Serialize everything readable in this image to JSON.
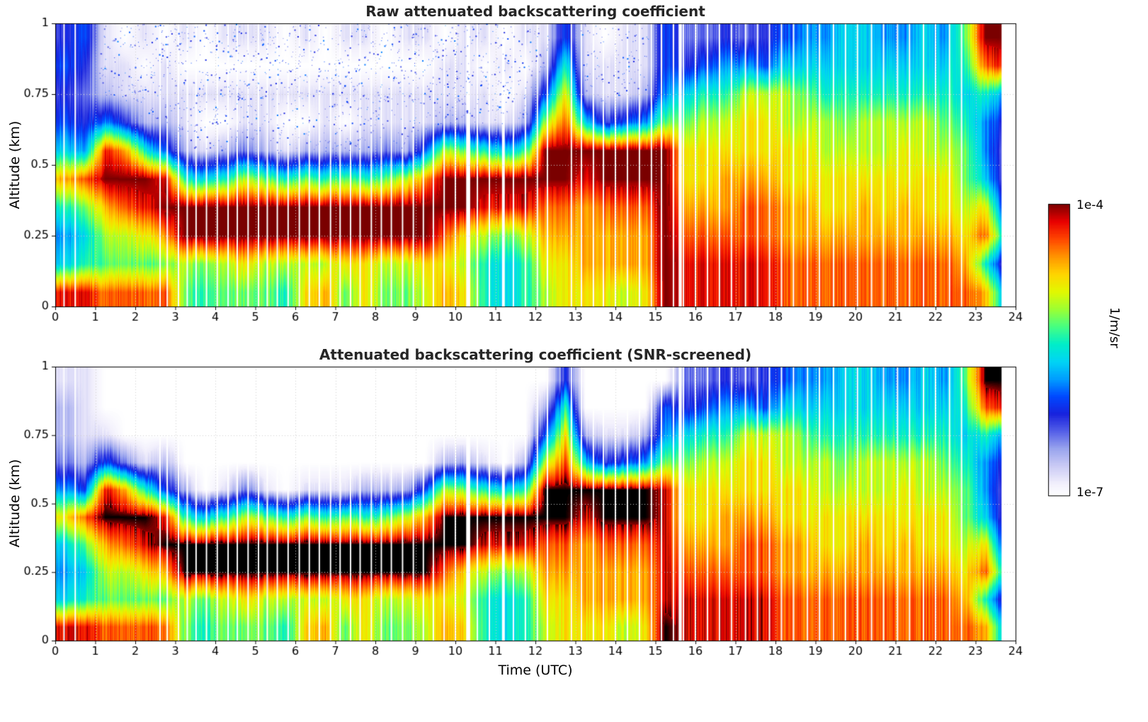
{
  "chart_data": {
    "type": "heatmap",
    "xlabel": "Time (UTC)",
    "ylabel": "Altitude (km)",
    "xlim": [
      0,
      24
    ],
    "ylim": [
      0,
      1
    ],
    "xticks": [
      0,
      1,
      2,
      3,
      4,
      5,
      6,
      7,
      8,
      9,
      10,
      11,
      12,
      13,
      14,
      15,
      16,
      17,
      18,
      19,
      20,
      21,
      22,
      23,
      24
    ],
    "yticks": [
      0,
      0.25,
      0.5,
      0.75,
      1
    ],
    "colorbar": {
      "max_label": "1e-4",
      "min_label": "1e-7",
      "unit": "1/m/sr"
    },
    "value_encoding": "48 half-hour columns x 10 altitude bins (bottom to top); hex digit d maps to normalized log10 backscatter (1e-7..1e-4) = d/15",
    "colormap_stops": [
      [
        0.0,
        "#ffffff"
      ],
      [
        0.04,
        "#f2f0fc"
      ],
      [
        0.1,
        "#ccccf5"
      ],
      [
        0.16,
        "#9aa5ee"
      ],
      [
        0.22,
        "#5560e8"
      ],
      [
        0.28,
        "#1822dd"
      ],
      [
        0.34,
        "#0048ff"
      ],
      [
        0.4,
        "#009dff"
      ],
      [
        0.46,
        "#00d4f5"
      ],
      [
        0.52,
        "#00eec8"
      ],
      [
        0.58,
        "#46ff82"
      ],
      [
        0.64,
        "#9dff32"
      ],
      [
        0.7,
        "#e2f800"
      ],
      [
        0.76,
        "#ffd400"
      ],
      [
        0.82,
        "#ff9400"
      ],
      [
        0.88,
        "#ff4600"
      ],
      [
        0.94,
        "#e90000"
      ],
      [
        1.0,
        "#7a0000"
      ]
    ],
    "plots": [
      {
        "title": "Raw attenuated backscattering coefficient",
        "max_color": "#7a0000",
        "columns": [
          "e768c75454",
          "e879d64345",
          "d9acfe6211",
          "d9adfc4110",
          "d9bef82101",
          "d9cfe52110",
          "9aff821101",
          "89ff710100",
          "9aff820101",
          "9bffa31101",
          "9aff921101",
          "8aff810100",
          "baff920101",
          "caff821100",
          "9bff920101",
          "bbff821101",
          "9aff931100",
          "9affa21101",
          "abffc51101",
          "cbdffa2110",
          "babff92111",
          "88aef81101",
          "779ef71010",
          "88aef82101",
          "abcdffa521",
          "bbcdffdb85",
          "bcccef7211",
          "bccdff4110",
          "accdff5111",
          "bccdff6211",
          "ffffff9655",
          "eedcbb9743",
          "eedcbba853",
          "eedccba864",
          "eeddcbba63",
          "eeddcbba54",
          "ddccbbaa75",
          "ddccbba976",
          "ddcbbaa876",
          "ddcbba9877",
          "ddccbaa877",
          "ddcbbaa876",
          "ddccbba876",
          "ddcbbaa877",
          "ddcbba9876",
          "dcba998789",
          "c8db7668df",
          "63743346ef"
        ]
      },
      {
        "title": "Attenuated backscattering coefficient (SNR-screened)",
        "max_color": "#000000",
        "columns": [
          "e767b63221",
          "e879d52111",
          "d9acfe5100",
          "d9adfc3000",
          "d9bef81000",
          "d9cfe52000",
          "9aff820000",
          "89ff700000",
          "9aff810000",
          "9bffa30000",
          "9aff910000",
          "8aff800000",
          "baff910000",
          "caff810000",
          "9bff910000",
          "bbff820000",
          "9aff920000",
          "9affa20000",
          "abffc50000",
          "cbdffa2000",
          "babff92000",
          "88aef81000",
          "779ef70000",
          "88aef82000",
          "abcdffa520",
          "bbcdffdb84",
          "bcccef7200",
          "bccdff4100",
          "accdff5100",
          "bccdff6200",
          "feeeee9650",
          "eedcbb9743",
          "eedcbba853",
          "eedccba864",
          "eeddcbba63",
          "eeddcbba54",
          "ddccbbaa75",
          "ddccbba976",
          "ddcbbaa876",
          "ddcbba9877",
          "ddccbaa877",
          "ddcbbaa876",
          "ddccbba876",
          "ddcbbaa877",
          "ddcbba9876",
          "dcba998789",
          "c8db7668df",
          "63743346ef"
        ]
      }
    ],
    "gaps": {
      "width_hours": 0.035,
      "times": [
        0.22,
        0.5,
        2.62,
        2.8,
        3.08,
        3.3,
        3.52,
        3.78,
        4.05,
        4.32,
        4.55,
        4.82,
        5.08,
        5.3,
        5.55,
        5.82,
        6.1,
        6.35,
        6.6,
        6.88,
        7.12,
        7.38,
        7.62,
        7.9,
        8.15,
        8.4,
        8.68,
        8.95,
        9.2,
        9.45,
        9.72,
        10.0,
        10.55,
        10.85,
        11.45,
        11.75,
        12.05,
        12.3,
        12.9,
        13.15,
        13.45,
        13.7,
        14.0,
        14.3,
        14.6,
        14.9,
        15.15,
        15.45,
        15.7,
        16.0,
        16.3,
        16.6,
        16.9,
        17.25,
        17.55,
        17.85,
        18.15,
        18.45,
        18.8,
        19.1,
        19.45,
        19.75,
        20.05,
        20.4,
        20.7,
        21.05,
        21.35,
        21.7,
        22.0,
        22.35,
        22.65
      ],
      "wide": [
        [
          10.32,
          0.1
        ],
        [
          11.2,
          0.07
        ],
        [
          15.62,
          0.08
        ],
        [
          23.85,
          0.4
        ]
      ]
    },
    "noise_speckles": {
      "plot": 0,
      "seed": 7,
      "count": 2600,
      "time_range": [
        0.1,
        15.3
      ],
      "alt_range": [
        0.45,
        1.0
      ],
      "value_range": [
        0.18,
        0.38
      ]
    }
  }
}
